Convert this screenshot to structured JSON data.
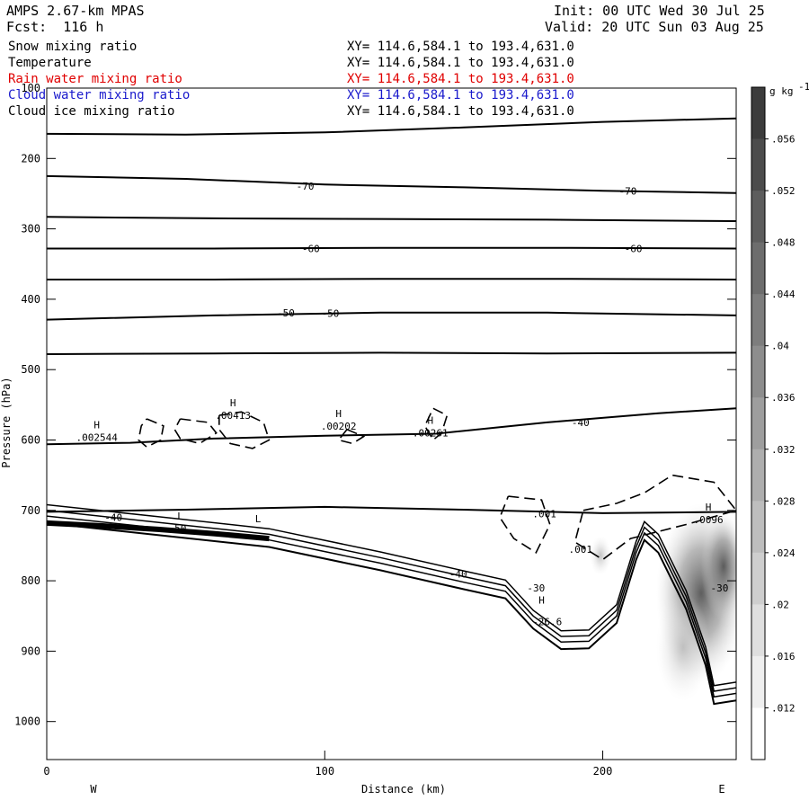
{
  "header": {
    "model": "AMPS 2.67-km MPAS",
    "forecast": "Fcst:  116 h",
    "init": "Init: 00 UTC Wed 30 Jul 25",
    "valid": "Valid: 20 UTC Sun 03 Aug 25"
  },
  "fields": [
    {
      "name": "Snow mixing ratio",
      "xy": "XY= 114.6,584.1 to 193.4,631.0",
      "color": "#000000"
    },
    {
      "name": "Temperature",
      "xy": "XY= 114.6,584.1 to 193.4,631.0",
      "color": "#000000"
    },
    {
      "name": "Rain water mixing ratio",
      "xy": "XY= 114.6,584.1 to 193.4,631.0",
      "color": "#e00000"
    },
    {
      "name": "Cloud water mixing ratio",
      "xy": "XY= 114.6,584.1 to 193.4,631.0",
      "color": "#1a1acc"
    },
    {
      "name": "Cloud ice mixing ratio",
      "xy": "XY= 114.6,584.1 to 193.4,631.0",
      "color": "#000000"
    }
  ],
  "chart_data": {
    "type": "cross-section contour",
    "xlabel": "Distance (km)",
    "ylabel": "Pressure (hPa)",
    "xlim": [
      0,
      248
    ],
    "ylim": [
      1050,
      100
    ],
    "xticks": [
      "0",
      "100",
      "200"
    ],
    "yticks": [
      "100",
      "200",
      "300",
      "400",
      "500",
      "600",
      "700",
      "800",
      "900",
      "1000"
    ],
    "x_side_labels": {
      "left": "W",
      "right": "E"
    },
    "colorbar": {
      "unit": "g kg",
      "unit_exp": "-1",
      "labels": [
        ".056",
        ".052",
        ".048",
        ".044",
        ".04",
        ".036",
        ".032",
        ".028",
        ".024",
        ".02",
        ".016",
        ".012"
      ]
    },
    "temperature_isotherms": [
      {
        "points": [
          [
            0,
            165
          ],
          [
            50,
            166
          ],
          [
            100,
            163
          ],
          [
            150,
            156
          ],
          [
            200,
            148
          ],
          [
            248,
            143
          ]
        ]
      },
      {
        "points": [
          [
            0,
            225
          ],
          [
            50,
            229
          ],
          [
            100,
            237
          ],
          [
            150,
            241
          ],
          [
            200,
            246
          ],
          [
            248,
            249
          ]
        ]
      },
      {
        "points": [
          [
            0,
            283
          ],
          [
            60,
            285
          ],
          [
            120,
            286
          ],
          [
            180,
            287
          ],
          [
            248,
            289
          ]
        ]
      },
      {
        "points": [
          [
            0,
            328
          ],
          [
            60,
            328
          ],
          [
            120,
            327
          ],
          [
            180,
            327
          ],
          [
            248,
            328
          ]
        ]
      },
      {
        "points": [
          [
            0,
            372
          ],
          [
            60,
            372
          ],
          [
            120,
            371
          ],
          [
            180,
            371
          ],
          [
            248,
            372
          ]
        ]
      },
      {
        "points": [
          [
            0,
            429
          ],
          [
            60,
            423
          ],
          [
            120,
            419
          ],
          [
            180,
            419
          ],
          [
            248,
            423
          ]
        ]
      },
      {
        "points": [
          [
            0,
            478
          ],
          [
            60,
            477
          ],
          [
            120,
            476
          ],
          [
            180,
            477
          ],
          [
            248,
            476
          ]
        ]
      },
      {
        "points": [
          [
            0,
            606
          ],
          [
            30,
            604
          ],
          [
            60,
            598
          ],
          [
            100,
            594
          ],
          [
            140,
            591
          ],
          [
            180,
            575
          ],
          [
            220,
            562
          ],
          [
            248,
            555
          ]
        ]
      },
      {
        "points": [
          [
            0,
            702
          ],
          [
            50,
            699
          ],
          [
            100,
            695
          ],
          [
            150,
            699
          ],
          [
            200,
            704
          ],
          [
            248,
            702
          ]
        ]
      }
    ],
    "contour_labels": [
      {
        "text": "-70",
        "x": 93,
        "y": 239
      },
      {
        "text": "-70",
        "x": 209,
        "y": 246
      },
      {
        "text": "-60",
        "x": 95,
        "y": 328
      },
      {
        "text": "-60",
        "x": 211,
        "y": 328
      },
      {
        "text": "-50",
        "x": 86,
        "y": 419
      },
      {
        "text": "-50",
        "x": 102,
        "y": 420
      },
      {
        "text": "-40",
        "x": 192,
        "y": 575
      },
      {
        "text": "-40",
        "x": 24,
        "y": 710
      },
      {
        "text": "-50",
        "x": 47,
        "y": 725
      },
      {
        "text": "-40",
        "x": 148,
        "y": 790
      },
      {
        "text": "-30",
        "x": 176,
        "y": 810
      },
      {
        "text": "-30",
        "x": 242,
        "y": 810
      },
      {
        "text": "-26.6",
        "x": 180,
        "y": 858
      }
    ],
    "maxima": [
      {
        "mark": "H",
        "value": ".002544",
        "x": 18,
        "y": 596
      },
      {
        "mark": "H",
        "value": ".00413",
        "x": 67,
        "y": 565
      },
      {
        "mark": "H",
        "value": ".00202",
        "x": 105,
        "y": 580
      },
      {
        "mark": "H",
        "value": ".00261",
        "x": 138,
        "y": 590
      },
      {
        "mark": "H",
        "value": ".0096",
        "x": 238,
        "y": 713
      },
      {
        "mark": "H",
        "value": "",
        "x": 178,
        "y": 845
      }
    ],
    "minima": [
      {
        "mark": "L",
        "x": 48,
        "y": 708
      },
      {
        "mark": "L",
        "x": 76,
        "y": 712
      }
    ],
    "dashed_labels": [
      {
        "text": ".001",
        "x": 179,
        "y": 705
      },
      {
        "text": ".001",
        "x": 192,
        "y": 755
      }
    ],
    "terrain": [
      [
        0,
        718
      ],
      [
        40,
        735
      ],
      [
        80,
        752
      ],
      [
        120,
        785
      ],
      [
        150,
        812
      ],
      [
        165,
        825
      ],
      [
        175,
        868
      ],
      [
        185,
        897
      ],
      [
        195,
        896
      ],
      [
        205,
        860
      ],
      [
        212,
        770
      ],
      [
        215,
        742
      ],
      [
        220,
        760
      ],
      [
        230,
        840
      ],
      [
        237,
        920
      ],
      [
        240,
        975
      ],
      [
        248,
        970
      ]
    ]
  }
}
